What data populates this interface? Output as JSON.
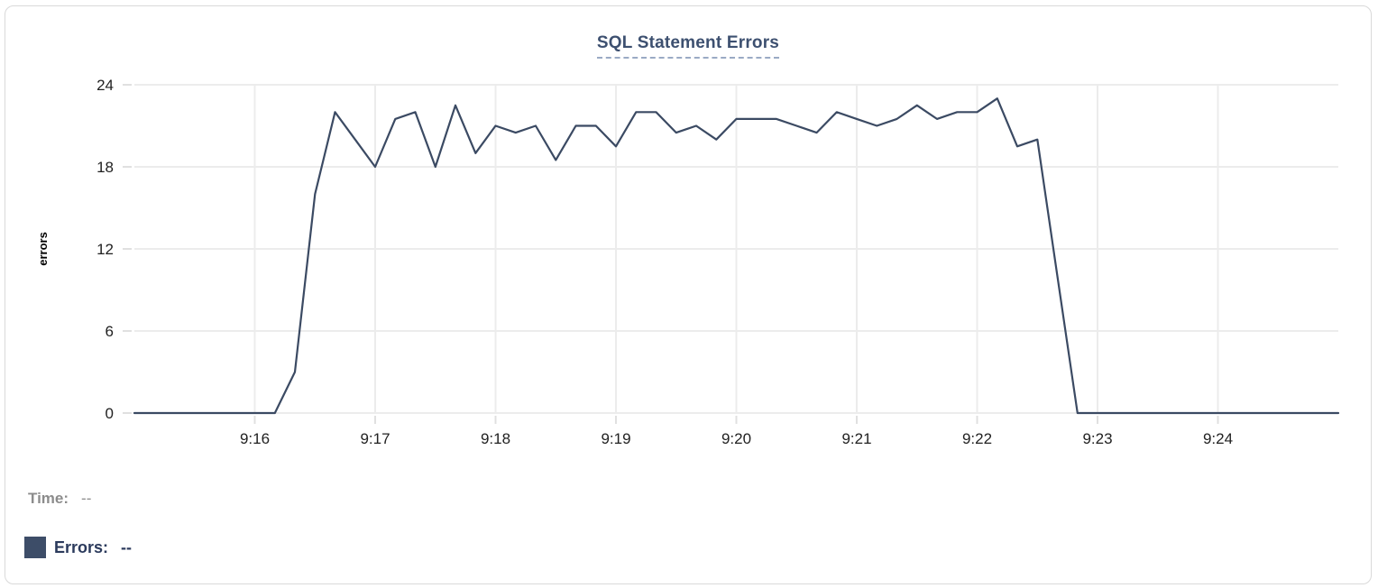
{
  "chart_data": {
    "type": "line",
    "title": "SQL Statement Errors",
    "xlabel": "",
    "ylabel": "errors",
    "ylim": [
      0,
      24
    ],
    "y_ticks": [
      0,
      6,
      12,
      18,
      24
    ],
    "x_axis_labels": [
      "9:16",
      "9:17",
      "9:18",
      "9:19",
      "9:20",
      "9:21",
      "9:22",
      "9:23",
      "9:24"
    ],
    "grid": true,
    "legend_position": "bottom-left",
    "x_times": [
      "9:15:00",
      "9:15:10",
      "9:15:20",
      "9:15:30",
      "9:15:40",
      "9:15:50",
      "9:16:00",
      "9:16:10",
      "9:16:20",
      "9:16:30",
      "9:16:40",
      "9:16:50",
      "9:17:00",
      "9:17:10",
      "9:17:20",
      "9:17:30",
      "9:17:40",
      "9:17:50",
      "9:18:00",
      "9:18:10",
      "9:18:20",
      "9:18:30",
      "9:18:40",
      "9:18:50",
      "9:19:00",
      "9:19:10",
      "9:19:20",
      "9:19:30",
      "9:19:40",
      "9:19:50",
      "9:20:00",
      "9:20:10",
      "9:20:20",
      "9:20:30",
      "9:20:40",
      "9:20:50",
      "9:21:00",
      "9:21:10",
      "9:21:20",
      "9:21:30",
      "9:21:40",
      "9:21:50",
      "9:22:00",
      "9:22:10",
      "9:22:20",
      "9:22:30",
      "9:22:40",
      "9:22:50",
      "9:23:00",
      "9:23:10",
      "9:23:20",
      "9:23:30",
      "9:23:40",
      "9:23:50",
      "9:24:00",
      "9:24:10",
      "9:24:20",
      "9:24:30",
      "9:24:40",
      "9:24:50",
      "9:25:00"
    ],
    "series": [
      {
        "name": "Errors",
        "color": "#3b4a63",
        "values": [
          0,
          0,
          0,
          0,
          0,
          0,
          0,
          0,
          3,
          16,
          22,
          20,
          18,
          21.5,
          22,
          18,
          22.5,
          19,
          21,
          20.5,
          21,
          18.5,
          21,
          21,
          19.5,
          22,
          22,
          20.5,
          21,
          20,
          21.5,
          21.5,
          21.5,
          21,
          20.5,
          22,
          21.5,
          21,
          21.5,
          22.5,
          21.5,
          22,
          22,
          23,
          19.5,
          20,
          10,
          0,
          0,
          0,
          0,
          0,
          0,
          0,
          0,
          0,
          0,
          0,
          0,
          0,
          0
        ]
      }
    ]
  },
  "readout": {
    "time_label": "Time:",
    "time_value": "--",
    "errors_label": "Errors:",
    "errors_value": "--"
  },
  "colors": {
    "line": "#3b4a63",
    "title": "#3d5070",
    "title_underline": "#9aaac4",
    "gridline": "#ececec",
    "tick_mark": "#e0e0e0",
    "axis_text": "#212121",
    "muted_text": "#8c8c8c",
    "legend_swatch": "#3d4d68",
    "card_border": "#d9d9d9"
  }
}
